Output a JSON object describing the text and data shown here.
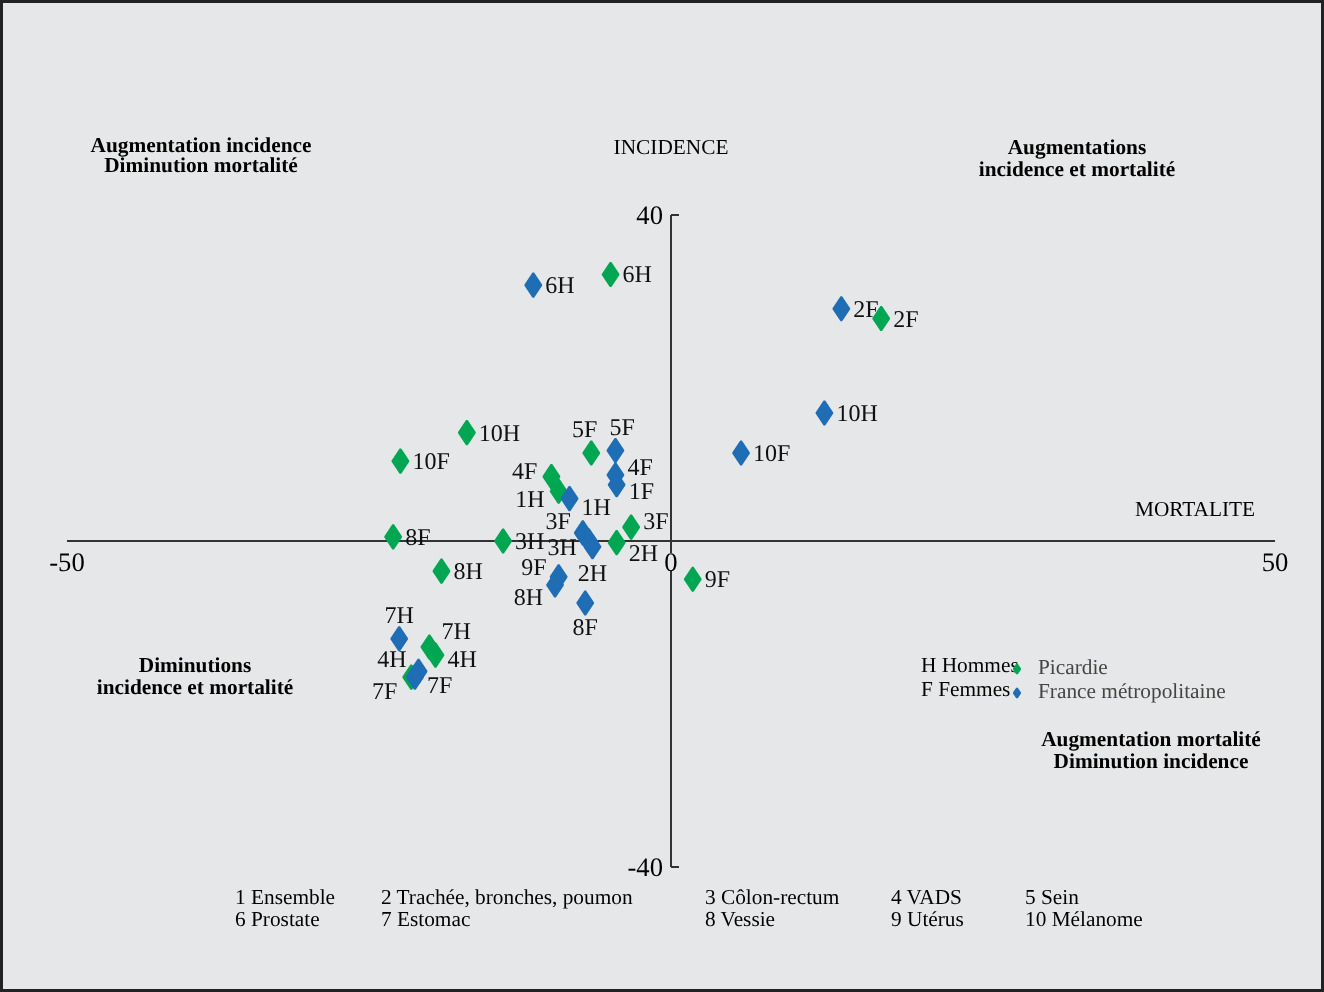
{
  "chart_data": {
    "type": "scatter",
    "xlabel": "MORTALITE",
    "ylabel": "INCIDENCE",
    "xlim": [
      -50,
      50
    ],
    "ylim": [
      -40,
      40
    ],
    "xticks": [
      -50,
      0,
      50
    ],
    "yticks": [
      40,
      -40
    ],
    "marker": "diamond",
    "legend": "right",
    "grid": false,
    "series": [
      {
        "name": "Picardie",
        "color": "#00a651",
        "x": [
          -5.0,
          -16.9,
          -22.4,
          -6.6,
          -9.9,
          -9.3,
          -3.3,
          -4.5,
          -13.9,
          -23.0,
          -19.0,
          1.8,
          17.4,
          -20.0,
          -19.5,
          -21.5
        ],
        "values": [
          32.7,
          13.3,
          9.8,
          10.8,
          7.9,
          6.1,
          1.7,
          -0.2,
          0.0,
          0.5,
          -3.7,
          -4.7,
          27.3,
          -13.0,
          -14.0,
          -16.7
        ]
      },
      {
        "name": "France métropolitaine",
        "color": "#1f6db5",
        "x": [
          -11.4,
          -4.6,
          -4.6,
          -4.5,
          -8.4,
          -7.3,
          -6.8,
          -6.5,
          -9.3,
          -9.6,
          -7.1,
          5.8,
          12.7,
          14.1,
          -22.5,
          -20.9,
          -21.2
        ],
        "values": [
          31.4,
          11.1,
          8.1,
          6.9,
          5.2,
          1.0,
          0.0,
          -0.7,
          -4.4,
          -5.4,
          -7.6,
          10.8,
          15.7,
          28.5,
          -12.0,
          -16.0,
          -16.7
        ]
      }
    ],
    "annotations": [
      "Augmentation incidence",
      "Diminution mortalité",
      "Augmentations",
      "incidence et mortalité",
      "Diminutions",
      "incidence et mortalité",
      "Augmentation mortalité",
      "Diminution incidence",
      "H Hommes",
      "F Femmes",
      "1 Ensemble",
      "6 Prostate",
      "2 Trachée, bronches, poumon",
      "7 Estomac",
      "3 Côlon-rectum",
      "8 Vessie",
      "4 VADS",
      "9 Utérus",
      "5 Sein",
      "10 Mélanome",
      {
        "text": "6H",
        "x": -5.0,
        "y": 32.7
      },
      {
        "text": "10H",
        "x": -16.9,
        "y": 13.3
      },
      {
        "text": "10F",
        "x": -22.4,
        "y": 9.8
      },
      {
        "text": "5F",
        "x": -6.6,
        "y": 10.8
      },
      {
        "text": "4F",
        "x": -9.9,
        "y": 7.9
      },
      {
        "text": "1H",
        "x": -9.3,
        "y": 6.1
      },
      {
        "text": "3F",
        "x": -3.3,
        "y": 1.7
      },
      {
        "text": "2H",
        "x": -4.5,
        "y": -0.2
      },
      {
        "text": "3H",
        "x": -13.9,
        "y": 0.0
      },
      {
        "text": "8F",
        "x": -23.0,
        "y": 0.5
      },
      {
        "text": "8H",
        "x": -19.0,
        "y": -3.7
      },
      {
        "text": "9F",
        "x": 1.8,
        "y": -4.7
      },
      {
        "text": "2F",
        "x": 17.4,
        "y": 27.3
      },
      {
        "text": "7H",
        "x": -20.0,
        "y": -13.0
      },
      {
        "text": "4H",
        "x": -19.5,
        "y": -14.0
      },
      {
        "text": "7F",
        "x": -21.5,
        "y": -16.7
      },
      {
        "text": "6H",
        "x": -11.4,
        "y": 31.4
      },
      {
        "text": "5F",
        "x": -4.6,
        "y": 11.1
      },
      {
        "text": "4F",
        "x": -4.6,
        "y": 8.1
      },
      {
        "text": "1F",
        "x": -4.5,
        "y": 6.9
      },
      {
        "text": "1H",
        "x": -8.4,
        "y": 5.2
      },
      {
        "text": "3F",
        "x": -7.3,
        "y": 1.0
      },
      {
        "text": "3H",
        "x": -6.8,
        "y": 0.0
      },
      {
        "text": "2H",
        "x": -6.5,
        "y": -0.7
      },
      {
        "text": "9F",
        "x": -9.3,
        "y": -4.4
      },
      {
        "text": "8H",
        "x": -9.6,
        "y": -5.4
      },
      {
        "text": "8F",
        "x": -7.1,
        "y": -7.6
      },
      {
        "text": "10F",
        "x": 5.8,
        "y": 10.8
      },
      {
        "text": "10H",
        "x": 12.7,
        "y": 15.7
      },
      {
        "text": "2F",
        "x": 14.1,
        "y": 28.5
      },
      {
        "text": "7H",
        "x": -22.5,
        "y": -12.0
      },
      {
        "text": "4H",
        "x": -20.9,
        "y": -16.0
      },
      {
        "text": "7F",
        "x": -21.2,
        "y": -16.7
      }
    ]
  }
}
